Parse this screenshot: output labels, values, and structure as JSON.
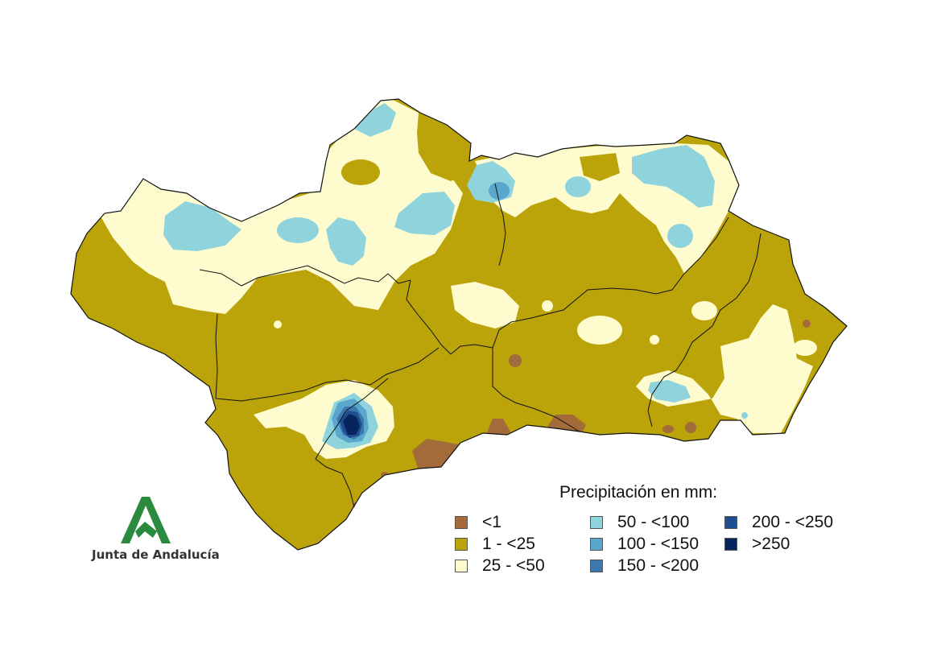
{
  "legend": {
    "title": "Precipitación en mm:",
    "classes": [
      {
        "label": "<1",
        "color": "#a36a3a"
      },
      {
        "label": "1 - <25",
        "color": "#bba30a"
      },
      {
        "label": "25 - <50",
        "color": "#fefccf"
      },
      {
        "label": "50 - <100",
        "color": "#8fd4dc"
      },
      {
        "label": "100 - <150",
        "color": "#5aa6cc"
      },
      {
        "label": "150 - <200",
        "color": "#3c78ad"
      },
      {
        "label": "200 - <250",
        "color": "#1d4f8f"
      },
      {
        "label": ">250",
        "color": "#08245c"
      }
    ]
  },
  "logo": {
    "text": "Junta de Andalucía",
    "color": "#2a8a3e",
    "icon": "junta-andalucia-logo"
  }
}
